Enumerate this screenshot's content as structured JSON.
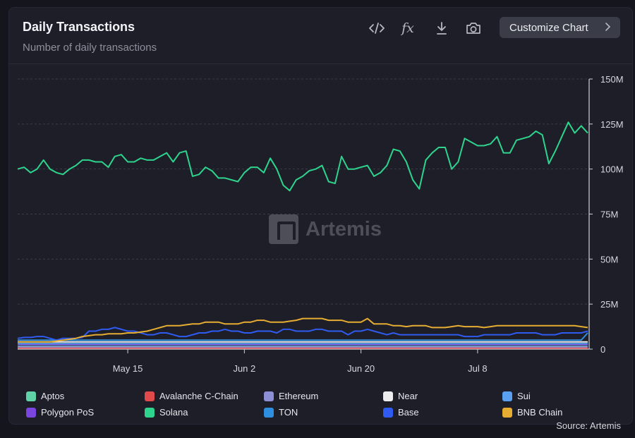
{
  "header": {
    "title": "Daily Transactions",
    "subtitle": "Number of daily transactions",
    "customize_label": "Customize Chart"
  },
  "toolbar": {
    "icons": [
      "code-icon",
      "formula-icon",
      "download-icon",
      "camera-icon"
    ],
    "fx_label": "fx"
  },
  "watermark": "Artemis",
  "source": "Source: Artemis",
  "chart_data": {
    "type": "line",
    "title": "Daily Transactions",
    "subtitle": "Number of daily transactions",
    "x_axis": {
      "tick_labels": [
        "May 15",
        "Jun 2",
        "Jun 20",
        "Jul 8"
      ],
      "tick_indices": [
        17,
        35,
        53,
        71
      ]
    },
    "y_axis": {
      "position": "right",
      "ylim": [
        0,
        150
      ],
      "unit": "M",
      "tick_labels": [
        "0",
        "25M",
        "50M",
        "75M",
        "100M",
        "125M",
        "150M"
      ]
    },
    "grid": "horizontal-dashed",
    "legend_position": "bottom",
    "series": [
      {
        "name": "Solana",
        "color": "#2ed48e",
        "values": [
          100,
          101,
          98,
          100,
          105,
          100,
          98,
          97,
          100,
          102,
          105,
          105,
          104,
          104,
          101,
          107,
          108,
          104,
          104,
          106,
          105,
          105,
          107,
          109,
          104,
          109,
          110,
          96,
          97,
          101,
          99,
          95,
          95,
          94,
          93,
          98,
          101,
          101,
          98,
          106,
          100,
          91,
          88,
          94,
          96,
          99,
          100,
          102,
          93,
          92,
          107,
          100,
          100,
          101,
          102,
          96,
          98,
          102,
          111,
          110,
          104,
          94,
          89,
          105,
          109,
          112,
          112,
          100,
          104,
          117,
          115,
          113,
          113,
          114,
          118,
          109,
          109,
          116,
          117,
          118,
          121,
          119,
          103,
          110,
          118,
          126,
          120,
          124,
          120
        ]
      },
      {
        "name": "BNB Chain",
        "color": "#e7ad33",
        "values": [
          4,
          4,
          4,
          4,
          4,
          4,
          4.5,
          5,
          5.5,
          6,
          7,
          7.5,
          8,
          8,
          8.5,
          8.5,
          8.5,
          9,
          9,
          9.5,
          10,
          11,
          12,
          13,
          13,
          13,
          13.5,
          14,
          14,
          15,
          15,
          15,
          14,
          14,
          14,
          15,
          15,
          16,
          16,
          15,
          15,
          15,
          15.5,
          16,
          17,
          17,
          17,
          17,
          16,
          16,
          16,
          15,
          15,
          15,
          17,
          14,
          14,
          14,
          13,
          13,
          12.5,
          13,
          13,
          13,
          12,
          12,
          12,
          12.5,
          13,
          12.5,
          12.5,
          12.5,
          12,
          12.5,
          13,
          13,
          13,
          13,
          13,
          13,
          13,
          13,
          13,
          13,
          13,
          13,
          13,
          12.5,
          12
        ]
      },
      {
        "name": "Base",
        "color": "#2f5bf0",
        "values": [
          6,
          6.5,
          6.5,
          7,
          7,
          6,
          5,
          6,
          6,
          6,
          6.5,
          10,
          10,
          11,
          11,
          12,
          11,
          10,
          10,
          9,
          8,
          8,
          9,
          9,
          8,
          7,
          7,
          8,
          9,
          9,
          10,
          10,
          11,
          10,
          10,
          9,
          9,
          10,
          10,
          10,
          9,
          11,
          11,
          10,
          10,
          10,
          11,
          11,
          10,
          10,
          10,
          8,
          10,
          10,
          11,
          10,
          9,
          8,
          9,
          8,
          8,
          8,
          8,
          8,
          8,
          8,
          8,
          8,
          8,
          7,
          7,
          7,
          8,
          8,
          8,
          8,
          8,
          9,
          9,
          9,
          9,
          8,
          8,
          8,
          9,
          9,
          9,
          9,
          10
        ]
      },
      {
        "name": "TON",
        "color": "#2e8fe0",
        "values": [
          5,
          5,
          5,
          5,
          5,
          5,
          5,
          5,
          5,
          5,
          5,
          5,
          5,
          5,
          5,
          5,
          5,
          5,
          5,
          5,
          5,
          5,
          5,
          5,
          5,
          5,
          5,
          5,
          5,
          5,
          5,
          5,
          5,
          5,
          5,
          5,
          5,
          5,
          5,
          5,
          5,
          5,
          5,
          5,
          5,
          5,
          5,
          5,
          5,
          5,
          5,
          5,
          5,
          5,
          5,
          5,
          5,
          5,
          5,
          5,
          5,
          5,
          5,
          5,
          5,
          5,
          5,
          5,
          5,
          5,
          5,
          5,
          5,
          5,
          5,
          5,
          5,
          5,
          5,
          5,
          5,
          5,
          5,
          5,
          5,
          5,
          5,
          5,
          9
        ]
      },
      {
        "name": "Near",
        "color": "#ededf0",
        "values": [
          4,
          4,
          4,
          4,
          4,
          4,
          4,
          4,
          4,
          4,
          4,
          4,
          4,
          4,
          4,
          4,
          4,
          4,
          4,
          4,
          4,
          4,
          4,
          4,
          4,
          4,
          4,
          4,
          4,
          4,
          4,
          4,
          4,
          4,
          4,
          4,
          4,
          4,
          4,
          4,
          4,
          4,
          4,
          4,
          4,
          4,
          4,
          4,
          4,
          4,
          4,
          4,
          4,
          4,
          4,
          4,
          4,
          4,
          4,
          4,
          4,
          4,
          4,
          4,
          4,
          4,
          4,
          4,
          4,
          4,
          4,
          4,
          4,
          4,
          4,
          4,
          4,
          4,
          4,
          4,
          4,
          4,
          4,
          4,
          4,
          4,
          4,
          4,
          4
        ]
      },
      {
        "name": "Sui",
        "color": "#5aa0f0",
        "values": [
          3,
          3,
          3,
          3,
          3,
          3,
          3,
          3,
          3,
          3,
          3,
          3,
          3,
          3,
          3,
          3,
          3,
          3,
          3,
          3,
          3,
          3,
          3,
          3,
          3,
          3,
          3,
          3,
          3,
          3,
          3,
          3,
          3,
          3,
          3,
          3,
          3,
          3,
          3,
          3,
          3,
          3,
          3,
          3,
          3,
          3,
          3,
          3,
          3,
          3,
          3,
          3,
          3,
          3,
          3,
          3,
          3,
          3,
          3,
          3,
          3,
          3,
          3,
          3,
          3,
          3,
          3,
          3,
          3,
          3,
          3,
          3,
          3,
          3,
          3,
          3,
          3,
          3,
          3,
          3,
          3,
          3,
          3,
          3,
          3,
          3,
          3,
          3,
          3
        ]
      },
      {
        "name": "Polygon PoS",
        "color": "#7b45e0",
        "values": [
          2.5,
          2.5,
          2.5,
          2.5,
          2.5,
          2.5,
          2.5,
          2.5,
          2.5,
          2.5,
          2.5,
          2.5,
          2.5,
          2.5,
          2.5,
          2.5,
          2.5,
          2.5,
          2.5,
          2.5,
          2.5,
          2.5,
          2.5,
          2.5,
          2.5,
          2.5,
          2.5,
          2.5,
          2.5,
          2.5,
          2.5,
          2.5,
          2.5,
          2.5,
          2.5,
          2.5,
          2.5,
          2.5,
          2.5,
          2.5,
          2.5,
          2.5,
          2.5,
          2.5,
          2.5,
          2.5,
          2.5,
          2.5,
          2.5,
          2.5,
          2.5,
          2.5,
          2.5,
          2.5,
          2.5,
          2.5,
          2.5,
          2.5,
          2.5,
          2.5,
          2.5,
          2.5,
          2.5,
          2.5,
          2.5,
          2.5,
          2.5,
          2.5,
          2.5,
          2.5,
          2.5,
          2.5,
          2.5,
          2.5,
          2.5,
          2.5,
          2.5,
          2.5,
          2.5,
          2.5,
          2.5,
          2.5,
          2.5,
          2.5,
          2.5,
          2.5,
          2.5,
          2.5,
          2.5
        ]
      },
      {
        "name": "Ethereum",
        "color": "#8c8fd6",
        "values": [
          1.2,
          1.2,
          1.2,
          1.2,
          1.2,
          1.2,
          1.2,
          1.2,
          1.2,
          1.2,
          1.2,
          1.2,
          1.2,
          1.2,
          1.2,
          1.2,
          1.2,
          1.2,
          1.2,
          1.2,
          1.2,
          1.2,
          1.2,
          1.2,
          1.2,
          1.2,
          1.2,
          1.2,
          1.2,
          1.2,
          1.2,
          1.2,
          1.2,
          1.2,
          1.2,
          1.2,
          1.2,
          1.2,
          1.2,
          1.2,
          1.2,
          1.2,
          1.2,
          1.2,
          1.2,
          1.2,
          1.2,
          1.2,
          1.2,
          1.2,
          1.2,
          1.2,
          1.2,
          1.2,
          1.2,
          1.2,
          1.2,
          1.2,
          1.2,
          1.2,
          1.2,
          1.2,
          1.2,
          1.2,
          1.2,
          1.2,
          1.2,
          1.2,
          1.2,
          1.2,
          1.2,
          1.2,
          1.2,
          1.2,
          1.2,
          1.2,
          1.2,
          1.2,
          1.2,
          1.2,
          1.2,
          1.2,
          1.2,
          1.2,
          1.2,
          1.2,
          1.2,
          1.2,
          1.2
        ]
      },
      {
        "name": "Aptos",
        "color": "#5fd3a6",
        "values": [
          1.5,
          1.5,
          1.5,
          1.5,
          1.5,
          1.5,
          1.5,
          1.5,
          1.5,
          1.5,
          1.5,
          1.5,
          1.5,
          1.5,
          1.5,
          1.5,
          1.5,
          1.5,
          1.5,
          1.5,
          1.5,
          1.5,
          1.5,
          1.5,
          1.5,
          1.5,
          1.5,
          1.5,
          1.5,
          1.5,
          1.5,
          1.5,
          1.5,
          1.5,
          1.5,
          1.5,
          1.5,
          1.5,
          1.5,
          1.5,
          1.5,
          1.5,
          1.5,
          1.5,
          1.5,
          1.5,
          1.5,
          1.5,
          1.5,
          1.5,
          1.5,
          1.5,
          1.5,
          1.5,
          1.5,
          1.5,
          1.5,
          1.5,
          1.5,
          1.5,
          1.5,
          1.5,
          1.5,
          1.5,
          1.5,
          1.5,
          1.5,
          1.5,
          1.5,
          1.5,
          1.5,
          1.5,
          1.5,
          1.5,
          1.5,
          1.5,
          1.5,
          1.5,
          1.5,
          1.5,
          1.5,
          1.5,
          1.5,
          1.5,
          1.5,
          1.5,
          1.5,
          1.5,
          1.5
        ]
      },
      {
        "name": "Avalanche C-Chain",
        "color": "#e04a4a",
        "values": [
          0.6,
          0.6,
          0.6,
          0.6,
          0.6,
          0.6,
          0.6,
          0.6,
          0.6,
          0.6,
          0.6,
          0.6,
          0.6,
          0.6,
          0.6,
          0.6,
          0.6,
          0.6,
          0.6,
          0.6,
          0.6,
          0.6,
          0.6,
          0.6,
          0.6,
          0.6,
          0.6,
          0.6,
          0.6,
          0.6,
          0.6,
          0.6,
          0.6,
          0.6,
          0.6,
          0.6,
          0.6,
          0.6,
          0.6,
          0.6,
          0.6,
          0.6,
          0.6,
          0.6,
          0.6,
          0.6,
          0.6,
          0.6,
          0.6,
          0.6,
          0.6,
          0.6,
          0.6,
          0.6,
          0.6,
          0.6,
          0.6,
          0.6,
          0.6,
          0.6,
          0.6,
          0.6,
          0.6,
          0.6,
          0.6,
          0.6,
          0.6,
          0.6,
          0.6,
          0.6,
          0.6,
          0.6,
          0.6,
          0.6,
          0.6,
          0.6,
          0.6,
          0.6,
          0.6,
          0.6,
          0.6,
          0.6,
          0.6,
          0.6,
          0.6,
          0.6,
          0.6,
          0.6,
          0.6
        ]
      }
    ],
    "legend": [
      {
        "label": "Aptos",
        "color": "#5fd3a6"
      },
      {
        "label": "Avalanche C-Chain",
        "color": "#e04a4a"
      },
      {
        "label": "Ethereum",
        "color": "#8c8fd6"
      },
      {
        "label": "Near",
        "color": "#ededf0"
      },
      {
        "label": "Sui",
        "color": "#5aa0f0"
      },
      {
        "label": "Polygon PoS",
        "color": "#7b45e0"
      },
      {
        "label": "Solana",
        "color": "#2ed48e"
      },
      {
        "label": "TON",
        "color": "#2e8fe0"
      },
      {
        "label": "Base",
        "color": "#2f5bf0"
      },
      {
        "label": "BNB Chain",
        "color": "#e7ad33"
      }
    ]
  }
}
